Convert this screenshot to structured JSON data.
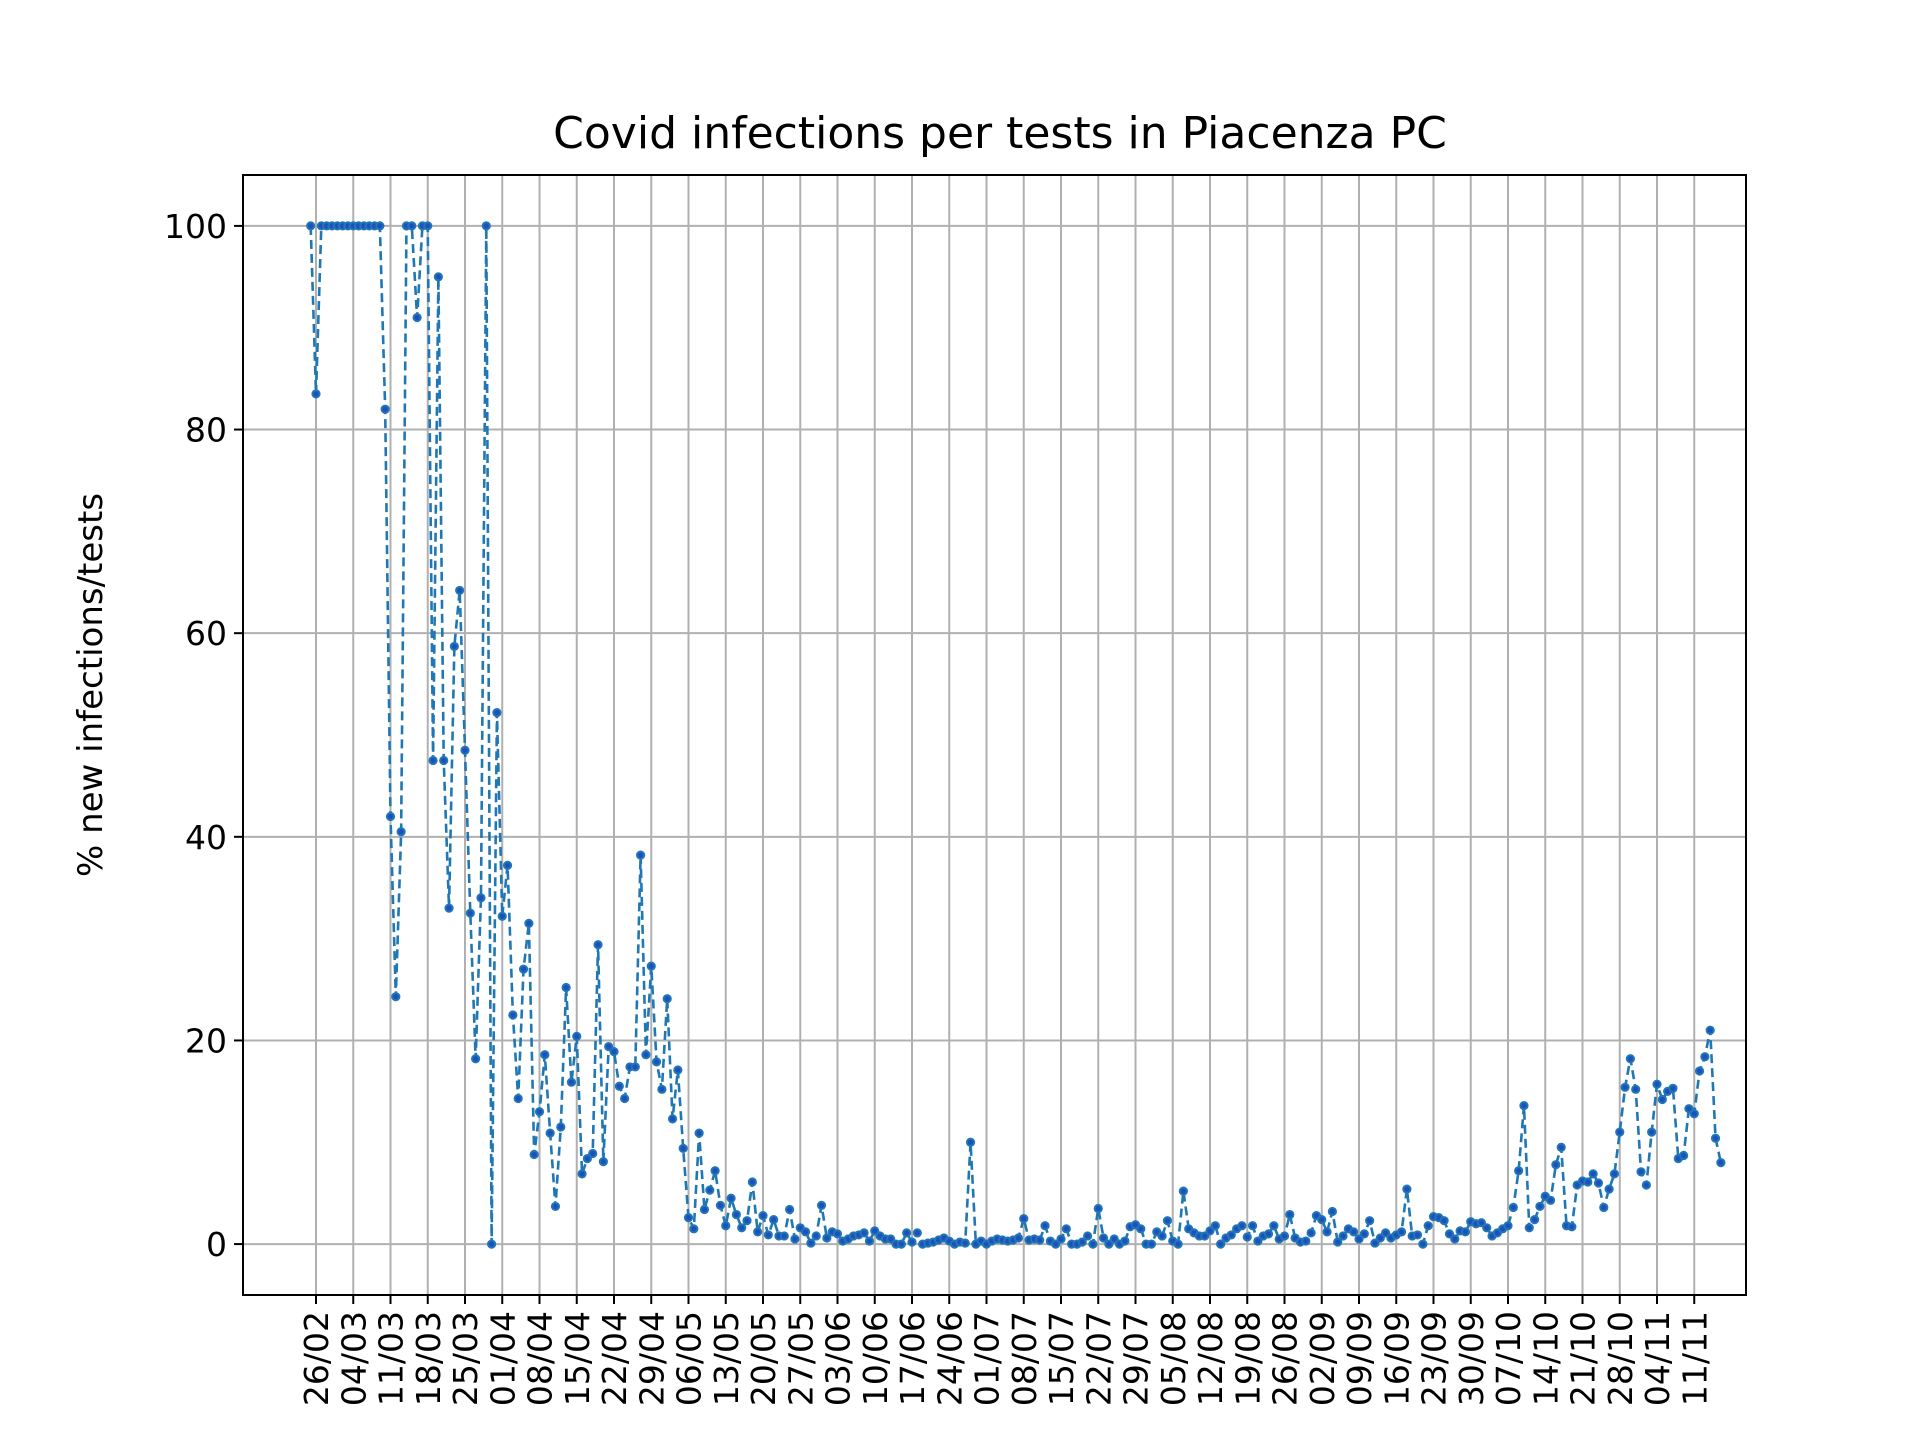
{
  "chart_data": {
    "type": "line",
    "title": "Covid infections per tests in Piacenza PC",
    "xlabel": "",
    "ylabel": "% new infections/tests",
    "ylim": [
      -5,
      105
    ],
    "yticks": [
      0,
      20,
      40,
      60,
      80,
      100
    ],
    "grid": true,
    "legend": "none",
    "x_tick_labels": [
      "26/02",
      "04/03",
      "11/03",
      "18/03",
      "25/03",
      "01/04",
      "08/04",
      "15/04",
      "22/04",
      "29/04",
      "06/05",
      "13/05",
      "20/05",
      "27/05",
      "03/06",
      "10/06",
      "17/06",
      "24/06",
      "01/07",
      "08/07",
      "15/07",
      "22/07",
      "29/07",
      "05/08",
      "12/08",
      "19/08",
      "26/08",
      "02/09",
      "09/09",
      "16/09",
      "23/09",
      "30/09",
      "07/10",
      "14/10",
      "21/10",
      "28/10",
      "04/11",
      "11/11"
    ],
    "x_start_label": "26/02",
    "x_day_offset_of_first_point": -1,
    "colors": {
      "series": "#1f77b4",
      "marker": "#1f4fbf",
      "grid": "#b0b0b0"
    },
    "series": [
      {
        "values": [
          100,
          83.5,
          100,
          100,
          100,
          100,
          100,
          100,
          100,
          100,
          100,
          100,
          100,
          100,
          82,
          42,
          24.3,
          40.5,
          100,
          100,
          91,
          100,
          100,
          47.5,
          95,
          47.5,
          33,
          58.7,
          64.2,
          48.5,
          32.5,
          18.2,
          34,
          100,
          0,
          52.2,
          32.2,
          37.2,
          22.5,
          14.3,
          27,
          31.5,
          8.8,
          13,
          18.6,
          10.9,
          3.7,
          11.5,
          25.2,
          15.9,
          20.4,
          6.9,
          8.4,
          8.9,
          29.4,
          8.1,
          19.4,
          18.9,
          15.5,
          14.3,
          17.4,
          17.4,
          38.2,
          18.6,
          27.3,
          17.9,
          15.2,
          24.1,
          12.3,
          17.1,
          9.4,
          2.6,
          1.5,
          10.9,
          3.4,
          5.3,
          7.2,
          3.8,
          1.8,
          4.5,
          2.9,
          1.6,
          2.3,
          6.1,
          1.2,
          2.8,
          0.9,
          2.4,
          0.8,
          0.8,
          3.4,
          0.5,
          1.6,
          1.2,
          0.1,
          0.8,
          3.8,
          0.6,
          1.2,
          1,
          0.3,
          0.5,
          0.8,
          0.9,
          1.1,
          0.3,
          1.3,
          0.8,
          0.5,
          0.5,
          0,
          0,
          1.1,
          0.2,
          1.1,
          0,
          0.1,
          0.2,
          0.4,
          0.6,
          0.3,
          0,
          0.2,
          0.1,
          10,
          0,
          0.3,
          0,
          0.3,
          0.5,
          0.4,
          0.3,
          0.4,
          0.6,
          2.5,
          0.4,
          0.5,
          0.4,
          1.8,
          0.3,
          0,
          0.5,
          1.5,
          0,
          0,
          0.2,
          0.8,
          0,
          3.5,
          0.6,
          0,
          0.5,
          0,
          0.3,
          1.7,
          1.9,
          1.5,
          0,
          0,
          1.2,
          0.8,
          2.3,
          0.3,
          0,
          5.2,
          1.5,
          1.1,
          0.8,
          0.8,
          1.3,
          1.8,
          0,
          0.6,
          0.9,
          1.5,
          1.8,
          0.7,
          1.8,
          0.3,
          0.8,
          1,
          1.8,
          0.5,
          0.8,
          2.9,
          0.6,
          0.2,
          0.3,
          1.1,
          2.8,
          2.4,
          1.2,
          3.2,
          0.2,
          0.8,
          1.5,
          1.2,
          0.5,
          1,
          2.3,
          0.1,
          0.6,
          1.1,
          0.6,
          0.9,
          1.2,
          5.4,
          0.8,
          0.9,
          0,
          1.8,
          2.7,
          2.6,
          2.3,
          1,
          0.5,
          1.3,
          1.2,
          2.2,
          2,
          2.1,
          1.6,
          0.8,
          1.1,
          1.5,
          1.8,
          3.6,
          7.2,
          13.6,
          1.6,
          2.4,
          3.7,
          4.7,
          4.3,
          7.8,
          9.5,
          1.8,
          1.7,
          5.8,
          6.2,
          6.1,
          6.9,
          6,
          3.6,
          5.4,
          6.9,
          11,
          15.4,
          18.2,
          15.2,
          7.1,
          5.8,
          11,
          15.7,
          14.2,
          15,
          15.3,
          8.4,
          8.7,
          13.3,
          12.8,
          17,
          18.4,
          21,
          10.4,
          8
        ]
      }
    ]
  }
}
